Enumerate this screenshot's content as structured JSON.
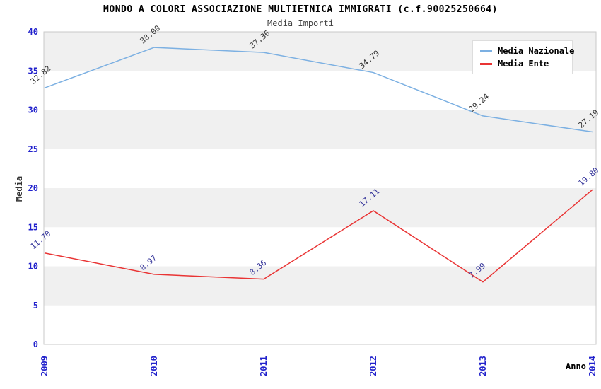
{
  "chart_data": {
    "type": "line",
    "title": "MONDO A COLORI ASSOCIAZIONE MULTIETNICA IMMIGRATI (c.f.90025250664)",
    "subtitle": "Media Importi",
    "xlabel": "Anno",
    "ylabel": "Media",
    "x": [
      "2009",
      "2010",
      "2011",
      "2012",
      "2013",
      "2014"
    ],
    "ylim": [
      0,
      40
    ],
    "ytick_step": 5,
    "yticks": [
      0,
      5,
      10,
      15,
      20,
      25,
      30,
      35,
      40
    ],
    "grid": "horizontal-bands",
    "legend_position": "top-right",
    "series": [
      {
        "name": "Media Nazionale",
        "color": "#7cb0e2",
        "label_color": "#333333",
        "values": [
          32.82,
          38.0,
          37.36,
          34.79,
          29.24,
          27.19
        ]
      },
      {
        "name": "Media Ente",
        "color": "#e93434",
        "label_color": "#333399",
        "values": [
          11.7,
          8.97,
          8.36,
          17.11,
          7.99,
          19.8
        ]
      }
    ],
    "colors": {
      "tick_label": "#2222cc",
      "band_gray": "#f0f0f0",
      "band_white": "#ffffff",
      "plot_border": "#c9c9c9"
    }
  }
}
